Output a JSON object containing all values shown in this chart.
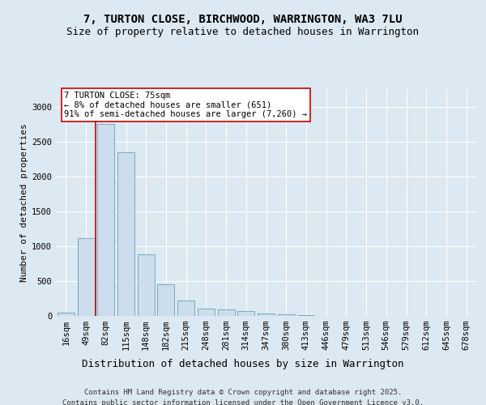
{
  "title": "7, TURTON CLOSE, BIRCHWOOD, WARRINGTON, WA3 7LU",
  "subtitle": "Size of property relative to detached houses in Warrington",
  "xlabel": "Distribution of detached houses by size in Warrington",
  "ylabel": "Number of detached properties",
  "categories": [
    "16sqm",
    "49sqm",
    "82sqm",
    "115sqm",
    "148sqm",
    "182sqm",
    "215sqm",
    "248sqm",
    "281sqm",
    "314sqm",
    "347sqm",
    "380sqm",
    "413sqm",
    "446sqm",
    "479sqm",
    "513sqm",
    "546sqm",
    "579sqm",
    "612sqm",
    "645sqm",
    "678sqm"
  ],
  "values": [
    50,
    1120,
    2750,
    2350,
    880,
    450,
    215,
    110,
    95,
    65,
    40,
    20,
    15,
    5,
    5,
    3,
    3,
    2,
    2,
    2,
    2
  ],
  "bar_color": "#ccdded",
  "bar_edge_color": "#7aaabb",
  "vline_x_idx": 2,
  "vline_color": "#cc0000",
  "annotation_text": "7 TURTON CLOSE: 75sqm\n← 8% of detached houses are smaller (651)\n91% of semi-detached houses are larger (7,260) →",
  "annotation_box_color": "#ffffff",
  "annotation_box_edge": "#cc0000",
  "background_color": "#dce8f2",
  "plot_bg_color": "#dce8f2",
  "footer_line1": "Contains HM Land Registry data © Crown copyright and database right 2025.",
  "footer_line2": "Contains public sector information licensed under the Open Government Licence v3.0.",
  "ylim": [
    0,
    3250
  ],
  "yticks": [
    0,
    500,
    1000,
    1500,
    2000,
    2500,
    3000
  ],
  "title_fontsize": 10,
  "subtitle_fontsize": 9,
  "xlabel_fontsize": 9,
  "ylabel_fontsize": 8,
  "tick_fontsize": 7.5,
  "annotation_fontsize": 7.5,
  "footer_fontsize": 6.5
}
